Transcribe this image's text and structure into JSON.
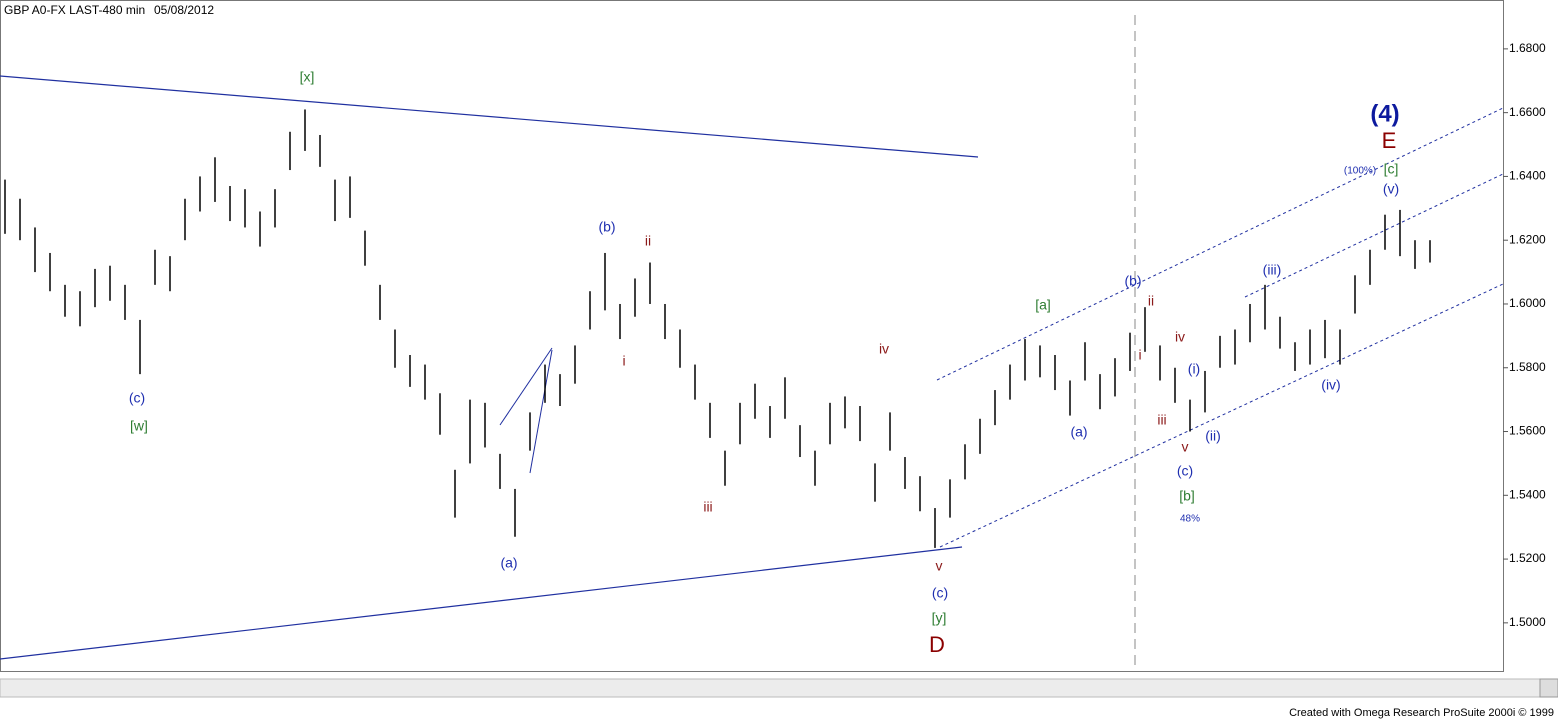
{
  "header": {
    "symbol": "GBP A0-FX LAST-480 min",
    "date": "05/08/2012"
  },
  "footer": "Created with Omega Research ProSuite 2000i © 1999",
  "chart_data": {
    "type": "range_bar",
    "color": "#000000",
    "ylim": [
      1.4849,
      1.6947
    ],
    "yticks": [
      {
        "value": 1.5,
        "label": "1.5000"
      },
      {
        "value": 1.52,
        "label": "1.5200"
      },
      {
        "value": 1.54,
        "label": "1.5400"
      },
      {
        "value": 1.56,
        "label": "1.5600"
      },
      {
        "value": 1.58,
        "label": "1.5800"
      },
      {
        "value": 1.6,
        "label": "1.6000"
      },
      {
        "value": 1.62,
        "label": "1.6200"
      },
      {
        "value": 1.64,
        "label": "1.6400"
      },
      {
        "value": 1.66,
        "label": "1.6600"
      },
      {
        "value": 1.68,
        "label": "1.6800"
      }
    ],
    "high": [
      1.639,
      1.633,
      1.624,
      1.616,
      1.606,
      1.604,
      1.611,
      1.612,
      1.606,
      1.595,
      1.617,
      1.615,
      1.633,
      1.64,
      1.646,
      1.637,
      1.636,
      1.629,
      1.636,
      1.654,
      1.661,
      1.653,
      1.639,
      1.64,
      1.623,
      1.606,
      1.592,
      1.584,
      1.581,
      1.572,
      1.548,
      1.57,
      1.569,
      1.553,
      1.542,
      1.566,
      1.581,
      1.578,
      1.587,
      1.604,
      1.616,
      1.6,
      1.608,
      1.613,
      1.6,
      1.592,
      1.581,
      1.569,
      1.554,
      1.569,
      1.575,
      1.568,
      1.577,
      1.562,
      1.554,
      1.569,
      1.571,
      1.568,
      1.55,
      1.566,
      1.552,
      1.546,
      1.536,
      1.545,
      1.556,
      1.564,
      1.573,
      1.581,
      1.589,
      1.587,
      1.584,
      1.576,
      1.588,
      1.578,
      1.583,
      1.591,
      1.599,
      1.587,
      1.58,
      1.57,
      1.579,
      1.59,
      1.592,
      1.6,
      1.606,
      1.596,
      1.588,
      1.592,
      1.595,
      1.592,
      1.609,
      1.617,
      1.628,
      1.6295,
      1.62,
      1.62
    ],
    "low": [
      1.622,
      1.62,
      1.61,
      1.604,
      1.596,
      1.593,
      1.599,
      1.601,
      1.595,
      1.578,
      1.606,
      1.604,
      1.62,
      1.629,
      1.632,
      1.626,
      1.624,
      1.618,
      1.624,
      1.642,
      1.648,
      1.643,
      1.626,
      1.627,
      1.612,
      1.595,
      1.58,
      1.574,
      1.57,
      1.559,
      1.533,
      1.55,
      1.555,
      1.542,
      1.527,
      1.554,
      1.569,
      1.568,
      1.575,
      1.592,
      1.598,
      1.589,
      1.596,
      1.6,
      1.589,
      1.58,
      1.57,
      1.558,
      1.543,
      1.556,
      1.564,
      1.558,
      1.564,
      1.552,
      1.543,
      1.556,
      1.561,
      1.557,
      1.538,
      1.554,
      1.542,
      1.535,
      1.5235,
      1.533,
      1.545,
      1.553,
      1.562,
      1.57,
      1.576,
      1.577,
      1.573,
      1.565,
      1.576,
      1.567,
      1.571,
      1.579,
      1.585,
      1.576,
      1.569,
      1.56,
      1.566,
      1.58,
      1.581,
      1.588,
      1.592,
      1.586,
      1.579,
      1.581,
      1.583,
      1.581,
      1.597,
      1.606,
      1.617,
      1.615,
      1.611,
      1.613
    ],
    "annotations": [
      {
        "text": "[x]",
        "color": "#2e7d32"
      },
      {
        "text": "(c)",
        "color": "#1f2fb0"
      },
      {
        "text": "[w]",
        "color": "#2e7d32"
      },
      {
        "text": "(a)",
        "color": "#1f2fb0"
      },
      {
        "text": "(b)",
        "color": "#1f2fb0"
      },
      {
        "text": "ii",
        "color": "#8b1a1a"
      },
      {
        "text": "i",
        "color": "#8b1a1a"
      },
      {
        "text": "iii",
        "color": "#8b1a1a"
      },
      {
        "text": "iv",
        "color": "#8b1a1a"
      },
      {
        "text": "v",
        "color": "#8b1a1a"
      },
      {
        "text": "(c)",
        "color": "#1f2fb0"
      },
      {
        "text": "[y]",
        "color": "#2e7d32"
      },
      {
        "text": "D",
        "color": "#8b0000"
      },
      {
        "text": "[a]",
        "color": "#2e7d32"
      },
      {
        "text": "(a)",
        "color": "#1f2fb0"
      },
      {
        "text": "(b)",
        "color": "#1f2fb0"
      },
      {
        "text": "ii",
        "color": "#8b1a1a"
      },
      {
        "text": "i",
        "color": "#8b1a1a"
      },
      {
        "text": "iv",
        "color": "#8b1a1a"
      },
      {
        "text": "iii",
        "color": "#8b1a1a"
      },
      {
        "text": "v",
        "color": "#8b1a1a"
      },
      {
        "text": "(i)",
        "color": "#1f2fb0"
      },
      {
        "text": "(ii)",
        "color": "#1f2fb0"
      },
      {
        "text": "(c)",
        "color": "#1f2fb0"
      },
      {
        "text": "[b]",
        "color": "#2e7d32"
      },
      {
        "text": "48%",
        "color": "#1f2fb0"
      },
      {
        "text": "(iii)",
        "color": "#1f2fb0"
      },
      {
        "text": "(iv)",
        "color": "#1f2fb0"
      },
      {
        "text": "(v)",
        "color": "#1f2fb0"
      },
      {
        "text": "[c]",
        "color": "#2e7d32"
      },
      {
        "text": "(100%)",
        "color": "#1f2fb0"
      },
      {
        "text": "E",
        "color": "#8b0000"
      },
      {
        "text": "(4)",
        "color": "#0d1a9e"
      }
    ]
  }
}
